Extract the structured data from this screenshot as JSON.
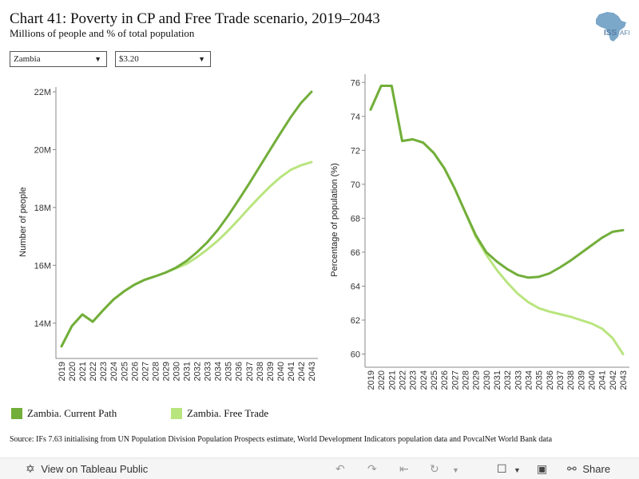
{
  "header": {
    "title": "Chart 41: Poverty in CP and Free Trade scenario, 2019–2043",
    "subtitle": "Millions of people and % of total population",
    "logo_text": "ISS",
    "logo_text_suffix": "AFI"
  },
  "filters": {
    "country": "Zambia",
    "poverty_line": "$3.20"
  },
  "colors": {
    "current_path": "#72AE3A",
    "free_trade": "#B9E57F",
    "axis": "#888888",
    "logo": "#7BA7C9"
  },
  "legend": {
    "current_path": "Zambia. Current Path",
    "free_trade": "Zambia. Free Trade"
  },
  "source": "Source: IFs 7.63 initialising from UN Population Division Population Prospects estimate, World Development Indicators population data and PovcalNet World Bank data",
  "toolbar": {
    "view_label": "View on Tableau Public",
    "share_label": "Share"
  },
  "chart_data": [
    {
      "type": "line",
      "ylabel": "Number of people",
      "xlabel": "",
      "x": [
        2019,
        2020,
        2021,
        2022,
        2023,
        2024,
        2025,
        2026,
        2027,
        2028,
        2029,
        2030,
        2031,
        2032,
        2033,
        2034,
        2035,
        2036,
        2037,
        2038,
        2039,
        2040,
        2041,
        2042,
        2043
      ],
      "ylim": [
        13.0,
        22.0
      ],
      "yticks": [
        14,
        16,
        18,
        20,
        22
      ],
      "ytick_labels": [
        "14M",
        "16M",
        "18M",
        "20M",
        "22M"
      ],
      "series": [
        {
          "name": "Zambia. Current Path",
          "values": [
            13.2,
            13.9,
            14.3,
            14.05,
            14.45,
            14.82,
            15.1,
            15.33,
            15.5,
            15.62,
            15.75,
            15.92,
            16.15,
            16.45,
            16.8,
            17.22,
            17.72,
            18.26,
            18.82,
            19.4,
            19.98,
            20.56,
            21.12,
            21.62,
            22.0
          ]
        },
        {
          "name": "Zambia. Free Trade",
          "values": [
            13.2,
            13.9,
            14.3,
            14.05,
            14.45,
            14.82,
            15.1,
            15.33,
            15.5,
            15.62,
            15.75,
            15.9,
            16.05,
            16.28,
            16.55,
            16.85,
            17.2,
            17.58,
            17.98,
            18.36,
            18.72,
            19.04,
            19.3,
            19.46,
            19.57
          ]
        }
      ]
    },
    {
      "type": "line",
      "ylabel": "Percentage of population (%)",
      "xlabel": "",
      "x": [
        2019,
        2020,
        2021,
        2022,
        2023,
        2024,
        2025,
        2026,
        2027,
        2028,
        2029,
        2030,
        2031,
        2032,
        2033,
        2034,
        2035,
        2036,
        2037,
        2038,
        2039,
        2040,
        2041,
        2042,
        2043
      ],
      "ylim": [
        59.6,
        76.2
      ],
      "yticks": [
        60,
        62,
        64,
        66,
        68,
        70,
        72,
        74,
        76
      ],
      "ytick_labels": [
        "60",
        "62",
        "64",
        "66",
        "68",
        "70",
        "72",
        "74",
        "76"
      ],
      "series": [
        {
          "name": "Zambia. Current Path",
          "values": [
            74.4,
            75.8,
            75.8,
            72.55,
            72.65,
            72.45,
            71.85,
            70.95,
            69.75,
            68.35,
            67.0,
            66.0,
            65.45,
            65.0,
            64.65,
            64.5,
            64.55,
            64.75,
            65.1,
            65.5,
            65.95,
            66.4,
            66.85,
            67.2,
            67.3
          ]
        },
        {
          "name": "Zambia. Free Trade",
          "values": [
            74.4,
            75.8,
            75.8,
            72.55,
            72.65,
            72.45,
            71.85,
            70.95,
            69.75,
            68.35,
            66.9,
            65.85,
            64.95,
            64.2,
            63.55,
            63.05,
            62.7,
            62.5,
            62.35,
            62.2,
            62.0,
            61.8,
            61.5,
            60.95,
            60.0
          ]
        }
      ]
    }
  ]
}
